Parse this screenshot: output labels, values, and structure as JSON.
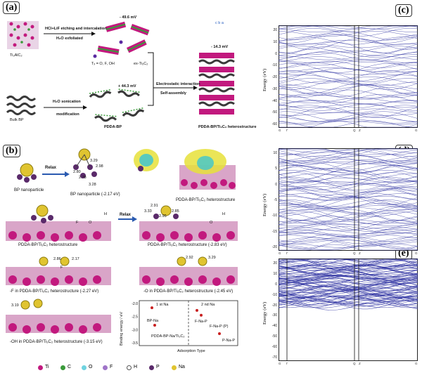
{
  "panel_a": {
    "label": "(a)",
    "ti3alc2": "Ti₃AlC₂",
    "etching": "HCl+LiF etching and intercalation",
    "exfoliated": "H₂O exfoliated",
    "zeta_ex": "- 49.6 mV",
    "terminations": "Tₓ = O, F, OH",
    "ex_tic": "ex-Ti₃C₂",
    "bulk_bp": "Bulk BP",
    "sonication": "H₂O sonication",
    "modification": "modification",
    "zeta_pdda": "+ 44.3 mV",
    "pdda_bp": "PDDA-BP",
    "electrostatic": "Electrostatic interaction",
    "self_assembly": "Self-assembly",
    "zeta_hetero": "- 14.3 mV",
    "hetero": "PDDA-BP/Ti₃C₂ heterostructure",
    "axes": "c  b  a"
  },
  "panel_b": {
    "label": "(b)",
    "relax": "Relax",
    "relax2": "Relax",
    "bp_np": "BP nanoparticle",
    "bp_np_e": "BP nanoparticle (-2.17 eV)",
    "hetero_top": "PDDA-BP/Ti₃C₂ heterostructure",
    "hetero_mid_left": "PDDA-BP/Ti₃C₂ heterostructure",
    "hetero_mid_right": "PDDA-BP/Ti₃C₂ heterostructure (-2.83 eV)",
    "f_in": "-F in PDDA-BP/Ti₃C₂ heterostructure (-2.27 eV)",
    "o_in": "-O in PDDA-BP/Ti₃C₂ heterostructure (-2.45 eV)",
    "oh_in": "-OH in PDDA-BP/Ti₃C₂ heterostructure (-3.15 eV)",
    "d1": "3.29",
    "d2": "2.98",
    "d3": "2.80",
    "d4": "2.78",
    "d5": "3.28",
    "d6": "2.91",
    "d7": "3.33",
    "d8": "2.85",
    "d9": "2.95",
    "d10": "2.86",
    "d11": "2.17",
    "d12": "2.92",
    "d13": "3.29",
    "d14": "3.19",
    "atom_f": "F",
    "atom_o": "O",
    "atom_h": "H",
    "atom_o2": "O",
    "atom_h2": "H",
    "atom_f2": "F"
  },
  "chart_data": {
    "type": "scatter",
    "title": "",
    "xlabel": "Adsorption Type",
    "ylabel": "Binding energy / eV",
    "ylim": [
      -3.6,
      -1.9
    ],
    "yticks": [
      "-2.0",
      "-2.5",
      "-3.0",
      "-3.5"
    ],
    "sections": [
      "1 st Na",
      "2 nd Na"
    ],
    "points": [
      {
        "label": "BP-Na",
        "value": -2.17
      },
      {
        "label": "PDDA-BP-Na/Ti₃C₂",
        "value": -2.83
      },
      {
        "label": "F-Na-P",
        "value": -2.27
      },
      {
        "label": "F-Na-P (P)",
        "value": -2.45
      },
      {
        "label": "P-Na-P",
        "value": -3.15
      }
    ]
  },
  "panel_c": {
    "label": "(c)",
    "ylabel": "Energy  (eV)",
    "yticks": [
      "20",
      "10",
      "0",
      "-10",
      "-20",
      "-30",
      "-40",
      "-50",
      "-60"
    ],
    "xticks": [
      "G",
      "Γ",
      "Q",
      "Z",
      "G"
    ]
  },
  "panel_d": {
    "label": "(d)",
    "ylabel": "Energy  (eV)",
    "yticks": [
      "10",
      "5",
      "0",
      "-5",
      "-10",
      "-15",
      "-20"
    ],
    "xticks": [
      "G",
      "Γ",
      "Q",
      "Z",
      "G"
    ]
  },
  "panel_e": {
    "label": "(e)",
    "ylabel": "Energy  (eV)",
    "yticks": [
      "20",
      "10",
      "0",
      "-10",
      "-20",
      "-30",
      "-40",
      "-50",
      "-60",
      "-70"
    ],
    "xticks": [
      "G",
      "Γ",
      "Q",
      "Z",
      "G"
    ]
  },
  "legend": {
    "ti": "Ti",
    "c": "C",
    "o": "O",
    "f": "F",
    "h": "H",
    "p": "P",
    "na": "Na"
  },
  "colors": {
    "ti": "#c2197e",
    "c": "#3a9a3a",
    "o": "#6fd3e0",
    "f": "#9f74c8",
    "h": "#ffffff",
    "p": "#5a2a6a",
    "na": "#e0c430",
    "band": "#2b2fa0"
  }
}
